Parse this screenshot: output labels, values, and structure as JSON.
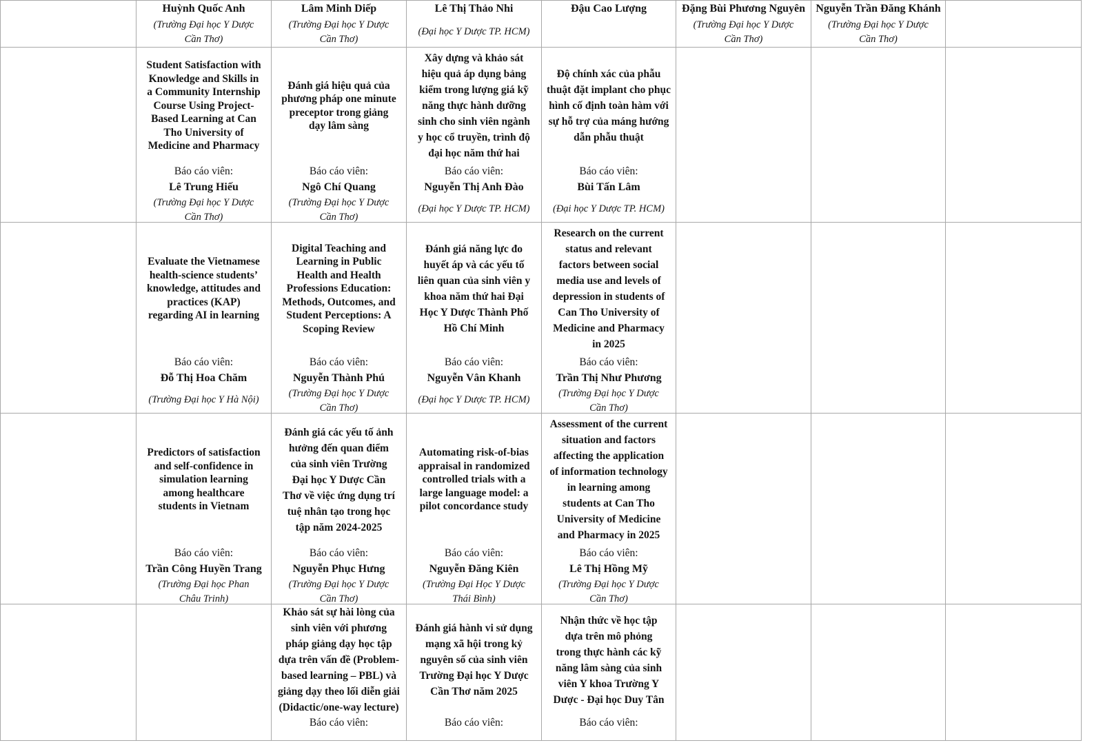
{
  "label": "Báo cáo viên:",
  "header": [
    {
      "name": "Huỳnh Quốc Anh",
      "aff": "(Trường Đại học Y Dược\nCần Thơ)"
    },
    {
      "name": "Lâm Minh Diếp",
      "aff": "(Trường Đại học Y Dược\nCần Thơ)"
    },
    {
      "name": "Lê Thị Thảo Nhi",
      "aff": "(Đại học Y Dược TP. HCM)"
    },
    {
      "name": "Đậu Cao Lượng",
      "aff": ""
    },
    {
      "name": "Đặng Bùi Phương Nguyên",
      "aff": "(Trường Đại học Y Dược\nCần Thơ)"
    },
    {
      "name": "Nguyễn Trần Đăng Khánh",
      "aff": "(Trường Đại học Y Dược\nCần Thơ)"
    }
  ],
  "rows": [
    [
      {
        "title": "Student Satisfaction with\nKnowledge and Skills in\na Community Internship\nCourse Using Project-\nBased Learning at Can\nTho University of\nMedicine and Pharmacy",
        "name": "Lê Trung Hiếu",
        "aff": "(Trường Đại học Y Dược\nCần Thơ)"
      },
      {
        "title": "Đánh giá hiệu quả của\nphương pháp one minute\npreceptor trong giảng\ndạy lâm sàng",
        "name": "Ngô Chí Quang",
        "aff": "(Trường Đại học Y Dược\nCần Thơ)"
      },
      {
        "title": "Xây dựng và khảo sát\nhiệu quả áp dụng bảng\nkiểm trong lượng giá kỹ\nnăng thực hành dưỡng\nsinh cho sinh viên ngành\ny học cổ truyền, trình độ\nđại học năm thứ hai",
        "name": "Nguyễn Thị Anh Đào",
        "aff": "(Đại học Y Dược TP. HCM)"
      },
      {
        "title": "Độ chính xác của phẫu\nthuật đặt implant cho phục\nhình cố định toàn hàm với\nsự hỗ trợ của máng hướng\ndẫn phẫu thuật",
        "name": "Bùi Tấn Lâm",
        "aff": "(Đại học Y Dược TP. HCM)"
      }
    ],
    [
      {
        "title": "Evaluate the Vietnamese\nhealth-science students’\nknowledge, attitudes and\npractices (KAP)\nregarding AI in learning",
        "name": "Đỗ Thị Hoa Chăm",
        "aff": "(Trường Đại học Y Hà Nội)"
      },
      {
        "title": "Digital Teaching and\nLearning in Public\nHealth and Health\nProfessions Education:\nMethods, Outcomes, and\nStudent Perceptions: A\nScoping Review",
        "name": "Nguyễn Thành Phú",
        "aff": "(Trường Đại học Y Dược\nCần Thơ)"
      },
      {
        "title": "Đánh giá năng lực đo\nhuyết áp và các yếu tố\nliên quan của sinh viên y\nkhoa năm thứ hai Đại\nHọc Y Dược Thành Phố\nHồ Chí Minh",
        "name": "Nguyễn Vân Khanh",
        "aff": "(Đại học Y Dược TP. HCM)"
      },
      {
        "title": "Research on the current\nstatus and relevant\nfactors between social\nmedia use and levels of\ndepression in students of\nCan Tho University of\nMedicine and Pharmacy\nin 2025",
        "name": "Trần Thị Như Phương",
        "aff": "(Trường Đại học Y Dược\nCần Thơ)"
      }
    ],
    [
      {
        "title": "Predictors of satisfaction\nand self-confidence in\nsimulation learning\namong healthcare\nstudents in Vietnam",
        "name": "Trần Công Huyền Trang",
        "aff": "(Trường Đại học Phan\nChâu Trinh)"
      },
      {
        "title": "Đánh giá các yếu tố ảnh\nhưởng đến quan điểm\ncủa sinh viên Trường\nĐại học Y Dược Cần\nThơ về việc ứng dụng trí\ntuệ nhân tạo trong học\ntập năm 2024-2025",
        "name": "Nguyễn Phục Hưng",
        "aff": "(Trường Đại học Y Dược\nCần Thơ)"
      },
      {
        "title": "Automating risk-of-bias\nappraisal in randomized\ncontrolled trials with a\nlarge language model: a\npilot concordance study",
        "name": "Nguyễn Đăng Kiên",
        "aff": "(Trường Đại Học Y Dược\nThái Bình)"
      },
      {
        "title": "Assessment of the current\nsituation and factors\naffecting the application\nof information technology\nin learning among\nstudents at Can Tho\nUniversity of Medicine\nand Pharmacy in 2025",
        "name": "Lê Thị Hồng Mỹ",
        "aff": "(Trường Đại học Y Dược\nCần Thơ)"
      }
    ],
    [
      null,
      {
        "title": "Khảo sát sự hài lòng của\nsinh viên  với phương\npháp giảng dạy học tập\ndựa trên  vấn đề (Problem-\nbased learning – PBL) và\ngiảng dạy theo lối diễn giải\n(Didactic/one-way lecture)"
      },
      {
        "title": "Đánh giá hành vi sử dụng\nmạng xã hội trong kỷ\nnguyên số của sinh viên\nTrường Đại học Y Dược\nCần Thơ năm 2025"
      },
      {
        "title": "Nhận thức về học tập\ndựa trên mô phỏng\ntrong thực hành các kỹ\nnăng lâm sàng của sinh\nviên Y khoa Trường Y\nDược - Đại học Duy Tân"
      }
    ]
  ]
}
